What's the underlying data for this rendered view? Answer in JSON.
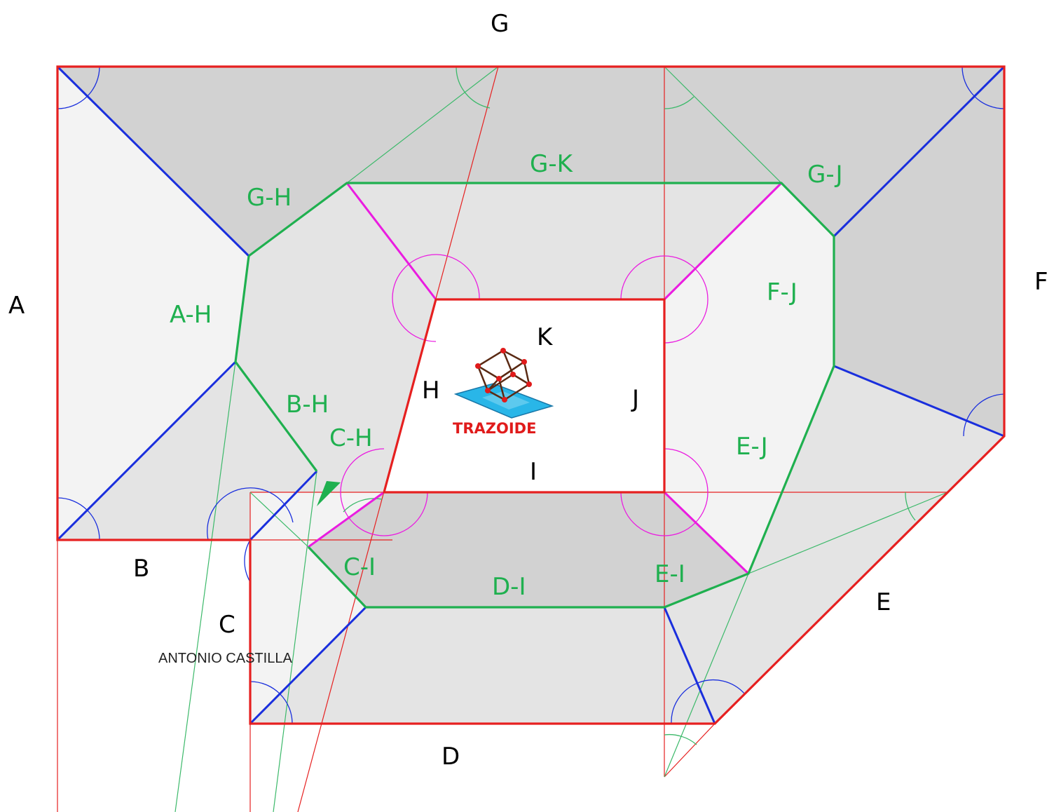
{
  "colors": {
    "outline": "#e62020",
    "ridge": "#1fb04f",
    "hip": "#1a2fdd",
    "valley": "#ea1ce0",
    "construction": "#3cb96a",
    "face_dark": "#d2d2d2",
    "face_mid": "#e4e4e4",
    "face_light": "#f3f3f3"
  },
  "vertex_labels": {
    "A": "A",
    "B": "B",
    "C": "C",
    "D": "D",
    "E": "E",
    "F": "F",
    "G": "G",
    "H": "H",
    "I": "I",
    "J": "J",
    "K": "K"
  },
  "edge_labels": {
    "GH": "G-H",
    "GK": "G-K",
    "GJ": "G-J",
    "AH": "A-H",
    "BH": "B-H",
    "CH": "C-H",
    "FJ": "F-J",
    "EJ": "E-J",
    "CI": "C-I",
    "DI": "D-I",
    "EI": "E-I"
  },
  "author": "ANTONIO  CASTILLA",
  "logo_text": "TRAZOIDE",
  "icons": [
    "trazoide-logo-icon"
  ]
}
